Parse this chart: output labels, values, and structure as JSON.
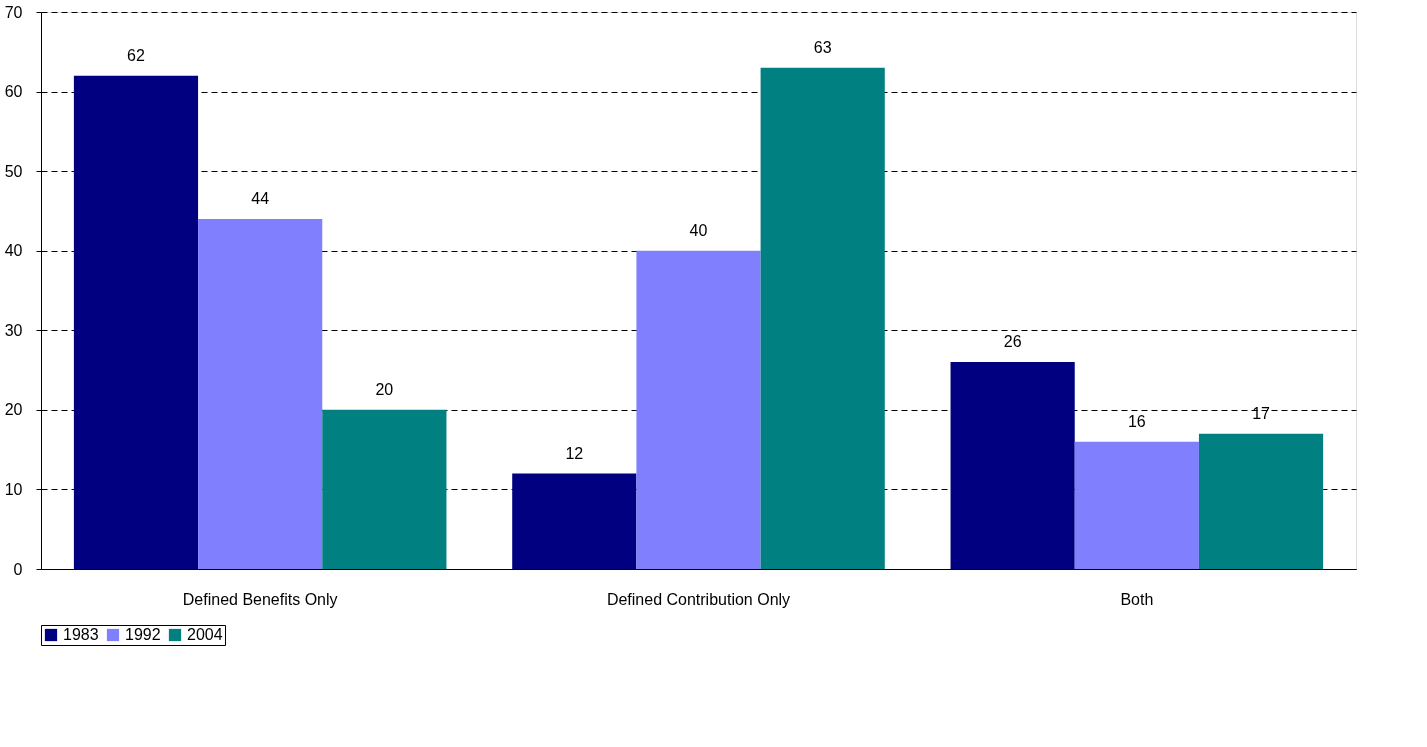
{
  "chart_data": {
    "type": "bar",
    "categories": [
      "Defined Benefits Only",
      "Defined Contribution Only",
      "Both"
    ],
    "series": [
      {
        "name": "1983",
        "color": "#000080",
        "values": [
          62,
          12,
          26
        ]
      },
      {
        "name": "1992",
        "color": "#8080ff",
        "values": [
          44,
          40,
          16
        ]
      },
      {
        "name": "2004",
        "color": "#008080",
        "values": [
          20,
          63,
          17
        ]
      }
    ],
    "ylim": [
      0,
      70
    ],
    "yticks": [
      0,
      10,
      20,
      30,
      40,
      50,
      60,
      70
    ],
    "grid": "y",
    "legend": "bottom",
    "data_labels": true
  }
}
